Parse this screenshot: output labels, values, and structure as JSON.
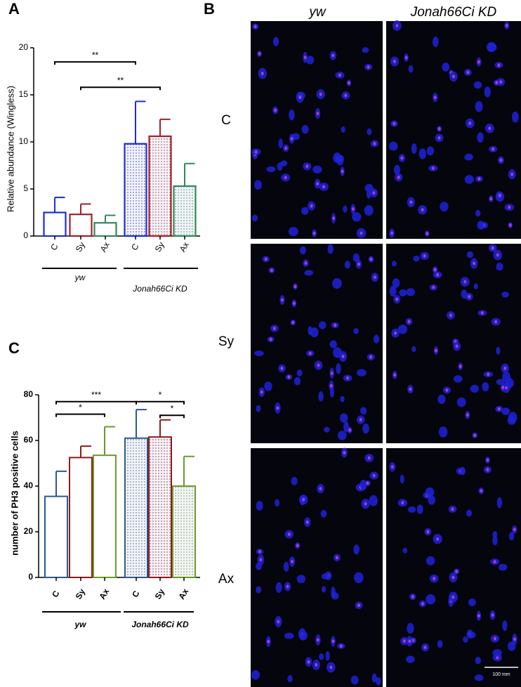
{
  "chart_data": [
    {
      "type": "bar",
      "label": "A",
      "y_label": "Relative abundance (Wingless)",
      "categories": [
        "C",
        "Sy",
        "Ax",
        "C",
        "Sy",
        "Ax"
      ],
      "values": [
        2.5,
        2.3,
        1.4,
        9.8,
        10.6,
        5.3
      ],
      "errors": [
        1.6,
        1.1,
        0.8,
        4.5,
        1.8,
        2.4
      ],
      "colors": [
        "#1b2fd6",
        "#a3202c",
        "#2e8b5a",
        "#1b2fd6",
        "#a3202c",
        "#2e8b5a"
      ],
      "dotted": [
        false,
        false,
        false,
        true,
        true,
        true
      ],
      "groups": [
        {
          "label": "yw",
          "span": [
            0,
            2
          ]
        },
        {
          "label": "Jonah66Ci KD",
          "span": [
            3,
            5
          ]
        }
      ],
      "significance": [
        {
          "from": 0,
          "to": 3,
          "y": 18.5,
          "label": "**"
        },
        {
          "from": 1,
          "to": 4,
          "y": 15.8,
          "label": "**"
        }
      ],
      "ylim": [
        0,
        20
      ],
      "yticks": [
        0,
        5,
        10,
        15,
        20
      ]
    },
    {
      "type": "bar",
      "label": "C",
      "y_label": "number of PH3 positive cells",
      "categories": [
        "C",
        "Sy",
        "Ax",
        "C",
        "Sy",
        "Ax"
      ],
      "values": [
        35.5,
        52.5,
        53.5,
        61,
        61.5,
        40
      ],
      "errors": [
        11,
        5,
        12.5,
        12.5,
        7.5,
        13
      ],
      "colors": [
        "#2b5a8e",
        "#8e1c1c",
        "#6b9a2c",
        "#2b5a8e",
        "#8e1c1c",
        "#6b9a2c"
      ],
      "dotted": [
        false,
        false,
        false,
        true,
        true,
        true
      ],
      "groups": [
        {
          "label": "yw",
          "span": [
            0,
            2
          ]
        },
        {
          "label": "Jonah66Ci KD",
          "span": [
            3,
            5
          ]
        }
      ],
      "significance": [
        {
          "from": 0,
          "to": 3,
          "y": 77,
          "label": "***"
        },
        {
          "from": 0,
          "to": 2,
          "y": 71.5,
          "label": "*"
        },
        {
          "from": 3,
          "to": 5,
          "y": 77,
          "label": "*"
        },
        {
          "from": 4,
          "to": 5,
          "y": 71,
          "label": "*"
        }
      ],
      "ylim": [
        0,
        80
      ],
      "yticks": [
        0,
        20,
        40,
        60,
        80
      ]
    }
  ],
  "panel_b": {
    "label": "B",
    "columns": [
      "yw",
      "Jonah66Ci KD"
    ],
    "rows": [
      "C",
      "Sy",
      "Ax"
    ],
    "scale_bar": "100 mm"
  }
}
